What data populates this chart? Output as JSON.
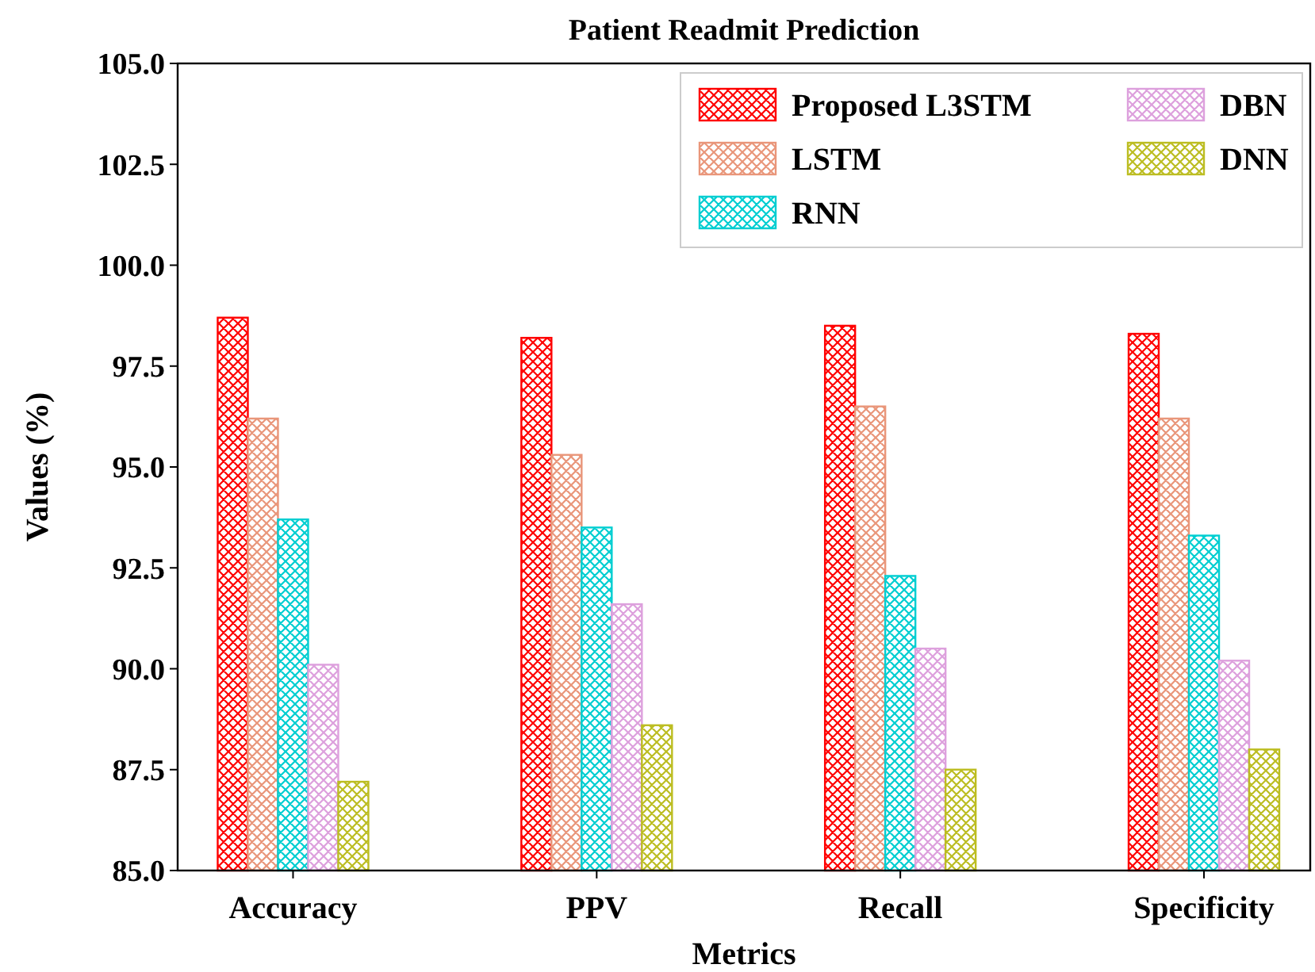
{
  "chart_data": {
    "type": "bar",
    "title": "Patient Readmit Prediction",
    "xlabel": "Metrics",
    "ylabel": "Values (%)",
    "categories": [
      "Accuracy",
      "PPV",
      "Recall",
      "Specificity"
    ],
    "series": [
      {
        "name": "Proposed L3STM",
        "color": "#ff0000",
        "values": [
          98.7,
          98.2,
          98.5,
          98.3
        ]
      },
      {
        "name": "LSTM",
        "color": "#e9967a",
        "values": [
          96.2,
          95.3,
          96.5,
          96.2
        ]
      },
      {
        "name": "RNN",
        "color": "#00ced1",
        "values": [
          93.7,
          93.5,
          92.3,
          93.3
        ]
      },
      {
        "name": "DBN",
        "color": "#dda0dd",
        "values": [
          90.1,
          91.6,
          90.5,
          90.2
        ]
      },
      {
        "name": "DNN",
        "color": "#bcbd22",
        "values": [
          87.2,
          88.6,
          87.5,
          88.0
        ]
      }
    ],
    "ylim": [
      85,
      105
    ],
    "yticks": [
      {
        "value": 85,
        "label": "85.0"
      },
      {
        "value": 87.5,
        "label": "87.5"
      },
      {
        "value": 90,
        "label": "90.0"
      },
      {
        "value": 92.5,
        "label": "92.5"
      },
      {
        "value": 95,
        "label": "95.0"
      },
      {
        "value": 97.5,
        "label": "97.5"
      },
      {
        "value": 100,
        "label": "100.0"
      },
      {
        "value": 102.5,
        "label": "102.5"
      },
      {
        "value": 105,
        "label": "105.0"
      }
    ],
    "legend": "top right",
    "grid": false
  }
}
